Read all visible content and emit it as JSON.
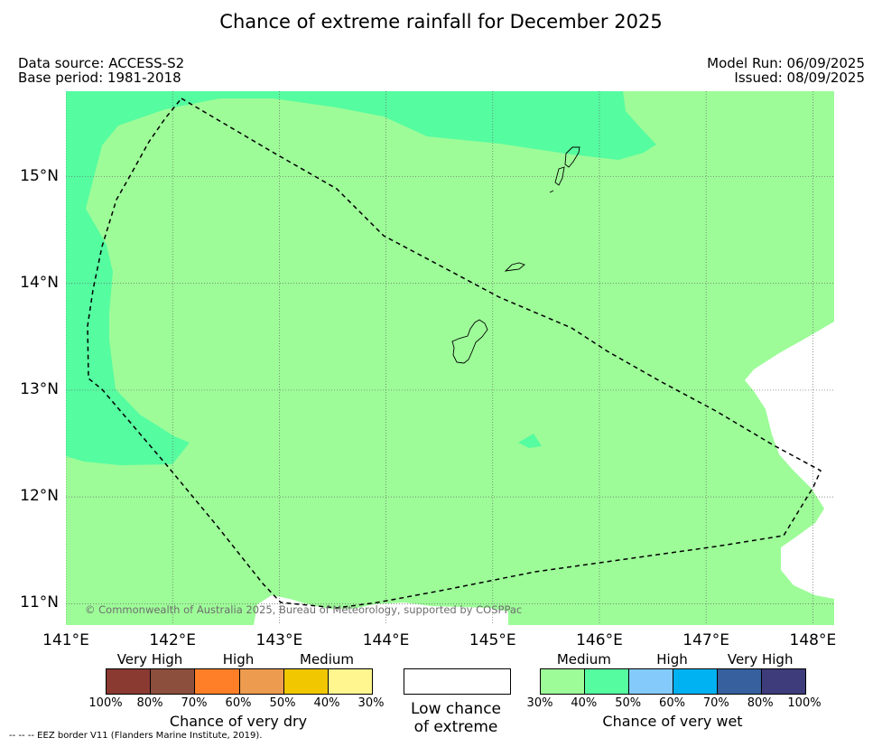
{
  "title": "Chance of extreme rainfall for December 2025",
  "meta": {
    "data_source": "Data source: ACCESS-S2",
    "base_period": "Base period: 1981-2018",
    "model_run": "Model Run: 06/09/2025",
    "issued": "Issued: 08/09/2025"
  },
  "map": {
    "copyright": "© Commonwealth of Australia 2025, Bureau of Meteorology, supported by COSPPac",
    "lon_range": [
      141,
      148.2
    ],
    "lat_range": [
      10.8,
      15.8
    ],
    "lon_ticks": [
      141,
      142,
      143,
      144,
      145,
      146,
      147,
      148
    ],
    "lat_ticks": [
      11,
      12,
      13,
      14,
      15
    ],
    "lon_labels": [
      "141°E",
      "142°E",
      "143°E",
      "144°E",
      "145°E",
      "146°E",
      "147°E",
      "148°E"
    ],
    "lat_labels": [
      "11°N",
      "12°N",
      "13°N",
      "14°N",
      "15°N"
    ],
    "colors": {
      "medium_wet": "#9dfc98",
      "high_wet_edge": "#55fca0",
      "low_chance": "#ffffff",
      "grid": "#666666",
      "coast": "#000000",
      "eez": "#000000"
    }
  },
  "legend": {
    "dry": {
      "categories": [
        "Very High",
        "High",
        "Medium"
      ],
      "colors": [
        "#8b3a32",
        "#8c4f3e",
        "#ff7f28",
        "#ed9b4e",
        "#f1c700",
        "#fff68f"
      ],
      "ticks": [
        "100%",
        "80%",
        "70%",
        "60%",
        "50%",
        "40%",
        "30%"
      ],
      "title": "Chance of very dry"
    },
    "low": {
      "title_line1": "Low chance",
      "title_line2": "of extreme",
      "color": "#ffffff"
    },
    "wet": {
      "categories": [
        "Medium",
        "High",
        "Very High"
      ],
      "colors": [
        "#9dfc98",
        "#55fca0",
        "#84cbfc",
        "#00b2f1",
        "#36609e",
        "#3e3c7a"
      ],
      "ticks": [
        "30%",
        "40%",
        "50%",
        "60%",
        "70%",
        "80%",
        "100%"
      ],
      "title": "Chance of very wet"
    }
  },
  "footnote": "--  --  -- EEZ border V11 (Flanders Marine Institute, 2019)."
}
